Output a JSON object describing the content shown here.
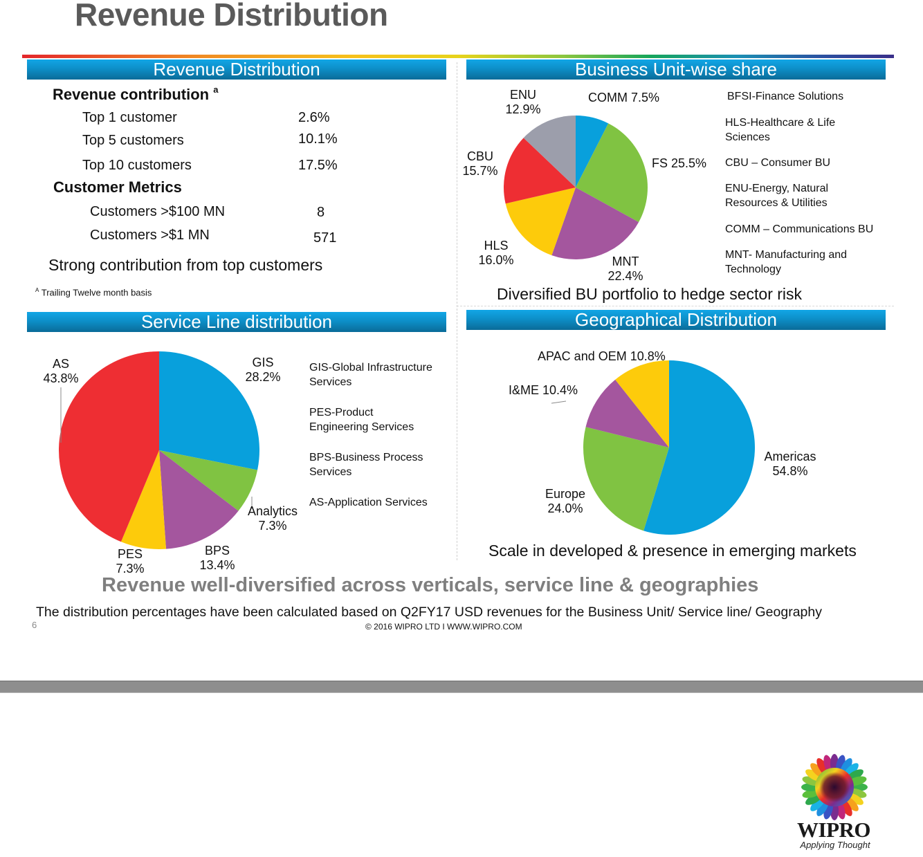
{
  "slide": {
    "title": "Revenue Distribution",
    "page_number": "6",
    "copyright": "© 2016 WIPRO LTD I WWW.WIPRO.COM",
    "headline": "Revenue well-diversified across verticals, service line & geographies",
    "footnote_main": "The distribution percentages have been calculated based on Q2FY17 USD revenues for the Business Unit/ Service line/ Geography",
    "logo": {
      "brand": "WIPRO",
      "tagline": "Applying Thought",
      "icon": "sunflower-logo-icon"
    }
  },
  "colors": {
    "header_gradient_top": "#12a6e6",
    "header_gradient_bottom": "#0a6b98",
    "blue": "#08a0dc",
    "green": "#80c342",
    "purple": "#a4569e",
    "yellow": "#fdcb0b",
    "red": "#ee2e33",
    "gray": "#9c9eab",
    "title_gray": "#5a5a5a",
    "headline_gray": "#7f7f7f"
  },
  "revenue_panel": {
    "header": "Revenue Distribution",
    "contribution_heading": "Revenue contribution",
    "contribution_superscript": "a",
    "contribution_rows": [
      {
        "label": "Top  1 customer",
        "value": "2.6%"
      },
      {
        "label": "Top 5 customers",
        "value": "10.1%"
      },
      {
        "label": "Top 10 customers",
        "value": "17.5%"
      }
    ],
    "metrics_heading": "Customer  Metrics",
    "metrics_rows": [
      {
        "label": "Customers >$100 MN",
        "value": "8"
      },
      {
        "label": "Customers >$1 MN",
        "value": "571"
      }
    ],
    "caption": "Strong contribution from top customers",
    "footnote_marker": "A",
    "footnote": "Trailing Twelve month basis"
  },
  "bu_panel": {
    "header": "Business Unit-wise share",
    "caption": "Diversified BU portfolio to hedge sector risk",
    "legend": [
      "BFSI-Finance Solutions",
      "HLS-Healthcare & Life Sciences",
      "CBU – Consumer BU",
      "ENU-Energy, Natural Resources & Utilities",
      "COMM – Communications BU",
      "MNT- Manufacturing and Technology"
    ],
    "legend_lines": [
      [
        "BFSI-Finance Solutions"
      ],
      [
        "HLS-Healthcare & Life",
        "Sciences"
      ],
      [
        "CBU – Consumer BU"
      ],
      [
        "ENU-Energy, Natural",
        "Resources & Utilities"
      ],
      [
        "COMM – Communications BU"
      ],
      [
        "MNT- Manufacturing and",
        "Technology"
      ]
    ],
    "slice_labels": {
      "COMM": "COMM 7.5%",
      "FS": "FS 25.5%",
      "MNT_name": "MNT",
      "MNT_value": "22.4%",
      "HLS_name": "HLS",
      "HLS_value": "16.0%",
      "CBU_name": "CBU",
      "CBU_value": "15.7%",
      "ENU_name": "ENU",
      "ENU_value": "12.9%"
    }
  },
  "service_panel": {
    "header": "Service Line distribution",
    "legend_lines": [
      [
        "GIS-Global Infrastructure",
        "Services"
      ],
      [
        "PES-Product",
        "Engineering Services"
      ],
      [
        "BPS-Business Process",
        "Services"
      ],
      [
        "AS-Application Services"
      ]
    ],
    "slice_labels": {
      "GIS_name": "GIS",
      "GIS_value": "28.2%",
      "Analytics_name": "Analytics",
      "Analytics_value": "7.3%",
      "BPS_name": "BPS",
      "BPS_value": "13.4%",
      "PES_name": "PES",
      "PES_value": "7.3%",
      "AS_name": "AS",
      "AS_value": "43.8%"
    }
  },
  "geo_panel": {
    "header": "Geographical Distribution",
    "caption": "Scale in developed & presence in emerging markets",
    "slice_labels": {
      "Americas_name": "Americas",
      "Americas_value": "54.8%",
      "Europe_name": "Europe",
      "Europe_value": "24.0%",
      "IME": "I&ME 10.4%",
      "APAC": "APAC and OEM 10.8%"
    }
  },
  "chart_data": [
    {
      "type": "pie",
      "title": "Business Unit-wise share",
      "start": "top",
      "direction": "clockwise",
      "categories": [
        "COMM",
        "FS",
        "MNT",
        "HLS",
        "CBU",
        "ENU"
      ],
      "values": [
        7.5,
        25.5,
        22.4,
        16.0,
        15.7,
        12.9
      ],
      "unit": "%",
      "colors": [
        "#08a0dc",
        "#80c342",
        "#a4569e",
        "#fdcb0b",
        "#ee2e33",
        "#9c9eab"
      ],
      "legend_position": "right"
    },
    {
      "type": "pie",
      "title": "Service Line distribution",
      "start": "top",
      "direction": "clockwise",
      "categories": [
        "GIS",
        "Analytics",
        "BPS",
        "PES",
        "AS"
      ],
      "values": [
        28.2,
        7.3,
        13.4,
        7.3,
        43.8
      ],
      "unit": "%",
      "colors": [
        "#08a0dc",
        "#80c342",
        "#a4569e",
        "#fdcb0b",
        "#ee2e33"
      ],
      "legend_position": "right"
    },
    {
      "type": "pie",
      "title": "Geographical Distribution",
      "start": "top",
      "direction": "clockwise",
      "categories": [
        "Americas",
        "Europe",
        "I&ME",
        "APAC and OEM"
      ],
      "values": [
        54.8,
        24.0,
        10.4,
        10.8
      ],
      "unit": "%",
      "colors": [
        "#08a0dc",
        "#80c342",
        "#a4569e",
        "#fdcb0b"
      ],
      "legend_position": "none"
    }
  ]
}
